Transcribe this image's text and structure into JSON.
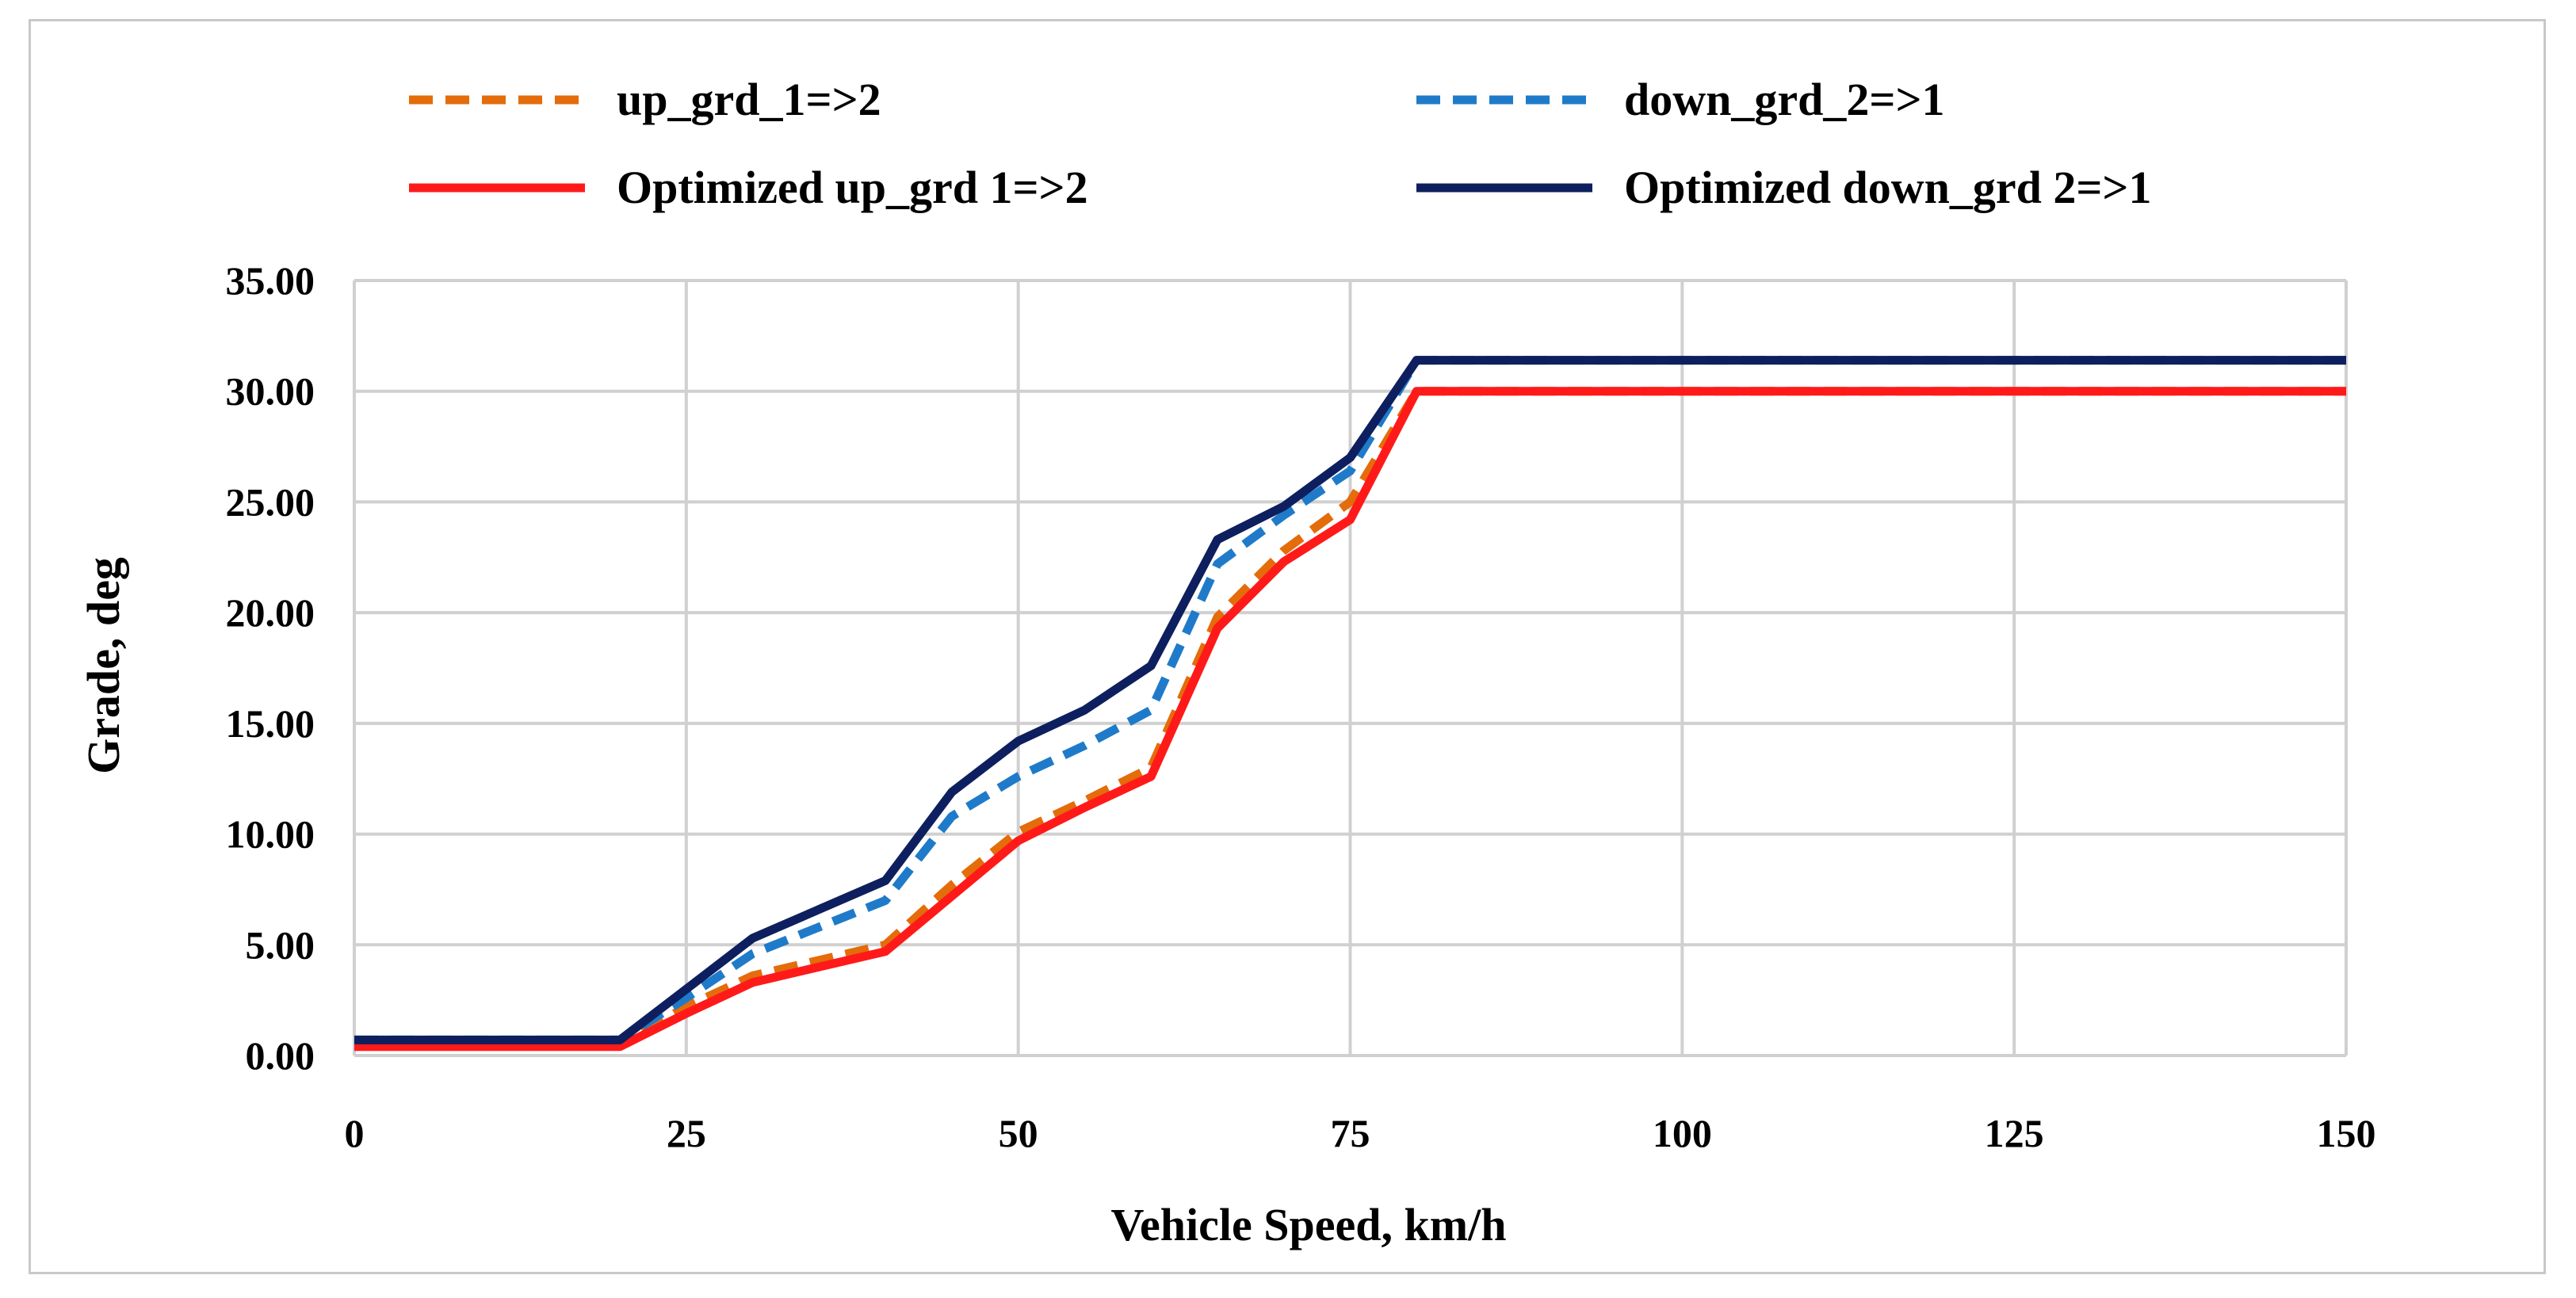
{
  "chart_data": {
    "type": "line",
    "title": "",
    "xlabel": "Vehicle Speed, km/h",
    "ylabel": "Grade, deg",
    "xlim": [
      0,
      150
    ],
    "ylim": [
      0,
      35
    ],
    "x_ticks": [
      0,
      25,
      50,
      75,
      100,
      125,
      150
    ],
    "x_tick_labels": [
      "0",
      "25",
      "50",
      "75",
      "100",
      "125",
      "150"
    ],
    "y_ticks": [
      0,
      5,
      10,
      15,
      20,
      25,
      30,
      35
    ],
    "y_tick_labels": [
      "0.00",
      "5.00",
      "10.00",
      "15.00",
      "20.00",
      "25.00",
      "30.00",
      "35.00"
    ],
    "grid": true,
    "legend_position": "top",
    "x": [
      0,
      20,
      25,
      30,
      35,
      40,
      45,
      50,
      55,
      60,
      65,
      70,
      75,
      80,
      150
    ],
    "series": [
      {
        "name": "up_grd_1=>2",
        "color": "#e46c0a",
        "style": "dashed",
        "values": [
          0.5,
          0.5,
          2.2,
          3.6,
          4.3,
          5.0,
          7.7,
          10.1,
          11.5,
          13.0,
          19.8,
          22.8,
          25.0,
          30.0,
          30.0
        ]
      },
      {
        "name": "down_grd_2=>1",
        "color": "#1f7bc9",
        "style": "dashed",
        "values": [
          0.7,
          0.7,
          2.6,
          4.6,
          5.8,
          7.0,
          10.8,
          12.6,
          14.0,
          15.6,
          22.2,
          24.4,
          26.4,
          31.4,
          31.4
        ]
      },
      {
        "name": "Optimized up_grd 1=>2",
        "color": "#ff1a1a",
        "style": "solid",
        "values": [
          0.4,
          0.4,
          1.9,
          3.3,
          4.0,
          4.7,
          7.2,
          9.7,
          11.2,
          12.6,
          19.3,
          22.3,
          24.2,
          30.0,
          30.0
        ]
      },
      {
        "name": "Optimized down_grd 2=>1",
        "color": "#0d1f5e",
        "style": "solid",
        "values": [
          0.7,
          0.7,
          3.0,
          5.3,
          6.6,
          7.9,
          11.9,
          14.2,
          15.6,
          17.6,
          23.3,
          24.8,
          27.0,
          31.4,
          31.4
        ]
      }
    ]
  }
}
